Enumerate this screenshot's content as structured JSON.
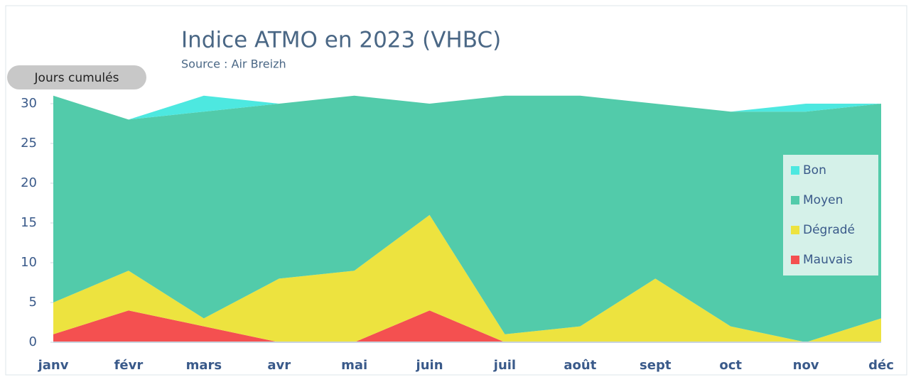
{
  "chart_data": {
    "type": "area",
    "stacked": true,
    "title": "Indice ATMO en 2023 (VHBC)",
    "subtitle": "Source : Air Breizh",
    "y_label": "Jours cumulés",
    "categories": [
      "janv",
      "févr",
      "mars",
      "avr",
      "mai",
      "juin",
      "juil",
      "août",
      "sept",
      "oct",
      "nov",
      "déc"
    ],
    "series": [
      {
        "name": "Mauvais",
        "color": "#f45050",
        "values": [
          1,
          4,
          2,
          0,
          0,
          4,
          0,
          0,
          0,
          0,
          0,
          0
        ]
      },
      {
        "name": "Dégradé",
        "color": "#ede33f",
        "values": [
          4,
          5,
          1,
          8,
          9,
          12,
          1,
          2,
          8,
          2,
          0,
          3
        ]
      },
      {
        "name": "Moyen",
        "color": "#52cbaa",
        "values": [
          26,
          19,
          26,
          22,
          22,
          14,
          30,
          29,
          22,
          27,
          29,
          27
        ]
      },
      {
        "name": "Bon",
        "color": "#4de8e0",
        "values": [
          0,
          0,
          2,
          0,
          0,
          0,
          0,
          0,
          0,
          0,
          1,
          0
        ]
      }
    ],
    "ylim": [
      0,
      30
    ],
    "yticks": [
      0,
      5,
      10,
      15,
      20,
      25,
      30
    ],
    "legend": "right"
  }
}
